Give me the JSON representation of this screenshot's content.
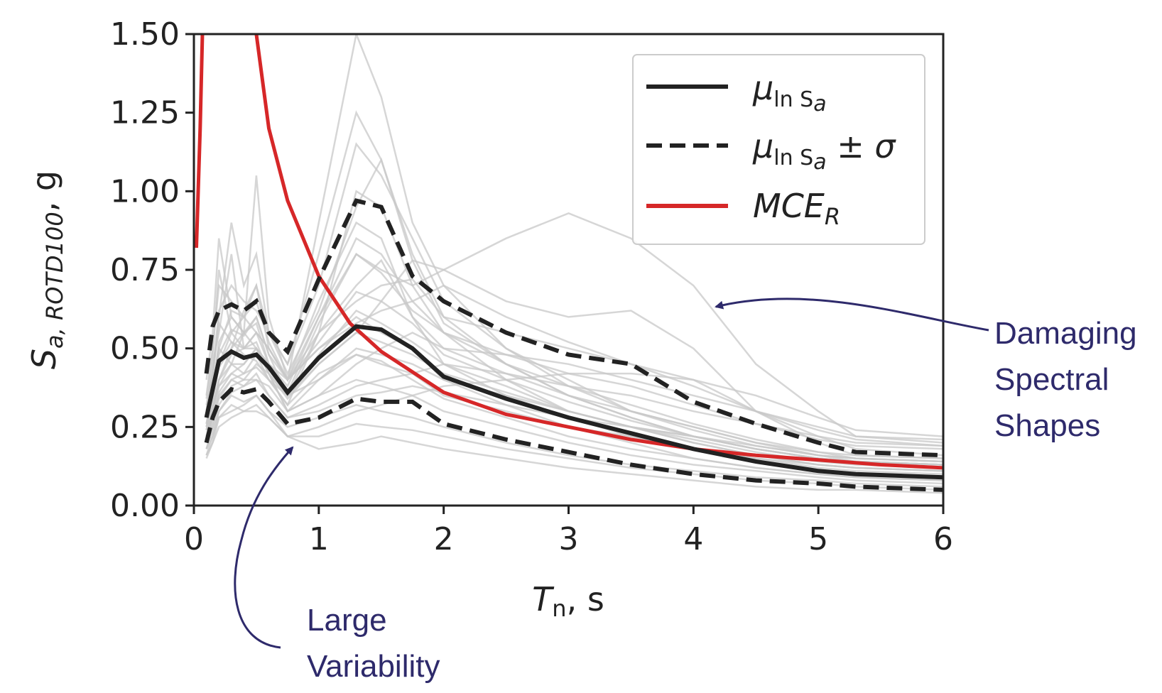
{
  "chart_data": {
    "type": "line",
    "xlabel": {
      "main": "T",
      "sub": "n",
      "rest": ", s"
    },
    "ylabel": {
      "main": "S",
      "sub": "a, ROTD100",
      "rest": ", g"
    },
    "xlim": [
      0,
      6
    ],
    "ylim": [
      0,
      1.5
    ],
    "xticks": [
      0,
      1,
      2,
      3,
      4,
      5,
      6
    ],
    "xtick_labels": [
      "0",
      "1",
      "2",
      "3",
      "4",
      "5",
      "6"
    ],
    "yticks": [
      0,
      0.25,
      0.5,
      0.75,
      1.0,
      1.25,
      1.5
    ],
    "ytick_labels": [
      "0.00",
      "0.25",
      "0.50",
      "0.75",
      "1.00",
      "1.25",
      "1.50"
    ],
    "grid": false,
    "legend": {
      "position": "top-right",
      "entries": [
        {
          "label": "μ",
          "sub": "ln S",
          "subsub": "a",
          "suffix": "",
          "style": "solid",
          "color": "#222222"
        },
        {
          "label": "μ",
          "sub": "ln S",
          "subsub": "a",
          "suffix": " ± σ",
          "style": "dashed",
          "color": "#222222"
        },
        {
          "label": "MCE",
          "sub": "R",
          "subsub": "",
          "suffix": "",
          "style": "solid",
          "color": "#d62728"
        }
      ]
    },
    "annotations": [
      {
        "text_lines": [
          "Damaging",
          "Spectral",
          "Shapes"
        ],
        "color": "#2e2a6b"
      },
      {
        "text_lines": [
          "Large",
          "Variability"
        ],
        "color": "#2e2a6b"
      }
    ],
    "x": [
      0.1,
      0.15,
      0.2,
      0.3,
      0.4,
      0.5,
      0.6,
      0.75,
      1.0,
      1.3,
      1.5,
      1.75,
      2.0,
      2.5,
      3.0,
      3.5,
      4.0,
      4.5,
      5.0,
      5.3,
      6.0
    ],
    "series": [
      {
        "name": "μ_lnSa",
        "role": "mean",
        "color": "#222222",
        "style": "solid",
        "values": [
          0.28,
          0.37,
          0.46,
          0.49,
          0.47,
          0.48,
          0.44,
          0.36,
          0.47,
          0.57,
          0.56,
          0.5,
          0.41,
          0.34,
          0.28,
          0.23,
          0.18,
          0.14,
          0.11,
          0.1,
          0.09
        ]
      },
      {
        "name": "μ_lnSa + σ",
        "role": "mean_plus",
        "color": "#222222",
        "style": "dashed",
        "values": [
          0.42,
          0.57,
          0.62,
          0.64,
          0.62,
          0.65,
          0.55,
          0.49,
          0.72,
          0.97,
          0.95,
          0.73,
          0.65,
          0.55,
          0.48,
          0.45,
          0.33,
          0.26,
          0.2,
          0.17,
          0.16
        ]
      },
      {
        "name": "μ_lnSa − σ",
        "role": "mean_minus",
        "color": "#222222",
        "style": "dashed",
        "values": [
          0.2,
          0.28,
          0.33,
          0.37,
          0.36,
          0.37,
          0.33,
          0.26,
          0.28,
          0.34,
          0.33,
          0.33,
          0.26,
          0.21,
          0.17,
          0.13,
          0.1,
          0.08,
          0.07,
          0.06,
          0.05
        ]
      }
    ],
    "mce_r": {
      "color": "#d62728",
      "x": [
        0.02,
        0.05,
        0.08,
        0.1,
        0.5,
        0.6,
        0.75,
        1.0,
        1.25,
        1.5,
        2.0,
        2.5,
        3.0,
        3.5,
        4.0,
        4.5,
        5.0,
        5.5,
        6.0
      ],
      "values": [
        0.82,
        1.2,
        1.7,
        2.2,
        1.5,
        1.2,
        0.97,
        0.73,
        0.58,
        0.49,
        0.36,
        0.29,
        0.25,
        0.21,
        0.18,
        0.16,
        0.145,
        0.13,
        0.12
      ]
    },
    "records": [
      {
        "values": [
          0.3,
          0.4,
          0.6,
          0.9,
          0.7,
          0.8,
          0.55,
          0.45,
          0.8,
          1.25,
          1.1,
          0.8,
          0.6,
          0.45,
          0.35,
          0.28,
          0.22,
          0.18,
          0.15,
          0.14,
          0.13
        ]
      },
      {
        "values": [
          0.25,
          0.35,
          0.45,
          0.55,
          0.6,
          0.7,
          0.5,
          0.4,
          0.9,
          1.5,
          1.3,
          0.9,
          0.7,
          0.5,
          0.4,
          0.3,
          0.25,
          0.2,
          0.17,
          0.15,
          0.14
        ]
      },
      {
        "values": [
          0.2,
          0.3,
          0.4,
          0.45,
          0.42,
          0.44,
          0.4,
          0.35,
          0.45,
          0.55,
          0.65,
          0.78,
          0.75,
          0.85,
          0.93,
          0.85,
          0.7,
          0.45,
          0.3,
          0.22,
          0.2
        ]
      },
      {
        "values": [
          0.35,
          0.5,
          0.7,
          0.65,
          0.6,
          0.55,
          0.5,
          0.4,
          0.6,
          0.8,
          0.75,
          0.7,
          0.75,
          0.65,
          0.6,
          0.62,
          0.5,
          0.3,
          0.2,
          0.16,
          0.15
        ]
      },
      {
        "values": [
          0.18,
          0.25,
          0.32,
          0.38,
          0.4,
          0.45,
          0.42,
          0.3,
          0.35,
          0.45,
          0.5,
          0.55,
          0.5,
          0.48,
          0.45,
          0.4,
          0.35,
          0.3,
          0.25,
          0.22,
          0.21
        ]
      },
      {
        "values": [
          0.4,
          0.55,
          0.85,
          0.6,
          0.55,
          0.5,
          0.45,
          0.35,
          0.55,
          1.0,
          0.95,
          0.7,
          0.55,
          0.4,
          0.3,
          0.25,
          0.2,
          0.16,
          0.13,
          0.12,
          0.11
        ]
      },
      {
        "values": [
          0.22,
          0.3,
          0.4,
          0.5,
          0.55,
          1.05,
          0.6,
          0.4,
          0.5,
          0.6,
          0.55,
          0.5,
          0.4,
          0.32,
          0.25,
          0.2,
          0.15,
          0.12,
          0.1,
          0.09,
          0.08
        ]
      },
      {
        "values": [
          0.15,
          0.2,
          0.28,
          0.3,
          0.32,
          0.35,
          0.3,
          0.22,
          0.25,
          0.3,
          0.32,
          0.35,
          0.38,
          0.4,
          0.42,
          0.42,
          0.4,
          0.3,
          0.22,
          0.18,
          0.16
        ]
      },
      {
        "values": [
          0.3,
          0.45,
          0.55,
          0.8,
          0.5,
          0.5,
          0.45,
          0.4,
          0.65,
          0.9,
          0.85,
          0.6,
          0.45,
          0.35,
          0.28,
          0.22,
          0.18,
          0.15,
          0.12,
          0.11,
          0.1
        ]
      },
      {
        "values": [
          0.25,
          0.32,
          0.38,
          0.42,
          0.4,
          0.4,
          0.38,
          0.3,
          0.4,
          0.5,
          0.48,
          0.45,
          0.4,
          0.35,
          0.3,
          0.25,
          0.22,
          0.18,
          0.15,
          0.14,
          0.13
        ]
      },
      {
        "values": [
          0.2,
          0.28,
          0.35,
          0.4,
          0.42,
          0.48,
          0.4,
          0.32,
          0.55,
          0.7,
          0.78,
          0.6,
          0.5,
          0.42,
          0.35,
          0.3,
          0.25,
          0.2,
          0.16,
          0.15,
          0.14
        ]
      },
      {
        "values": [
          0.28,
          0.35,
          0.5,
          0.45,
          0.45,
          0.5,
          0.42,
          0.3,
          0.35,
          0.4,
          0.38,
          0.35,
          0.3,
          0.25,
          0.2,
          0.16,
          0.13,
          0.11,
          0.09,
          0.08,
          0.07
        ]
      },
      {
        "values": [
          0.18,
          0.24,
          0.3,
          0.35,
          0.33,
          0.35,
          0.3,
          0.25,
          0.28,
          0.32,
          0.3,
          0.28,
          0.25,
          0.2,
          0.16,
          0.13,
          0.11,
          0.09,
          0.08,
          0.07,
          0.06
        ]
      },
      {
        "values": [
          0.32,
          0.42,
          0.62,
          0.7,
          0.65,
          0.62,
          0.55,
          0.45,
          0.7,
          1.15,
          1.05,
          0.85,
          0.65,
          0.5,
          0.38,
          0.3,
          0.24,
          0.19,
          0.16,
          0.14,
          0.13
        ]
      },
      {
        "values": [
          0.16,
          0.2,
          0.25,
          0.28,
          0.3,
          0.3,
          0.28,
          0.22,
          0.18,
          0.2,
          0.22,
          0.2,
          0.18,
          0.15,
          0.12,
          0.1,
          0.08,
          0.06,
          0.05,
          0.05,
          0.04
        ]
      },
      {
        "values": [
          0.24,
          0.32,
          0.45,
          0.52,
          0.5,
          0.55,
          0.5,
          0.4,
          0.55,
          0.65,
          0.7,
          0.72,
          0.6,
          0.55,
          0.5,
          0.45,
          0.4,
          0.35,
          0.28,
          0.24,
          0.22
        ]
      },
      {
        "values": [
          0.22,
          0.3,
          0.38,
          0.45,
          0.55,
          0.6,
          0.48,
          0.35,
          0.4,
          0.48,
          0.45,
          0.42,
          0.35,
          0.3,
          0.25,
          0.22,
          0.18,
          0.15,
          0.13,
          0.12,
          0.11
        ]
      },
      {
        "values": [
          0.26,
          0.36,
          0.52,
          0.6,
          0.55,
          0.58,
          0.45,
          0.38,
          0.6,
          0.85,
          0.8,
          0.65,
          0.55,
          0.45,
          0.38,
          0.32,
          0.26,
          0.21,
          0.17,
          0.16,
          0.15
        ]
      },
      {
        "values": [
          0.2,
          0.26,
          0.34,
          0.4,
          0.38,
          0.42,
          0.35,
          0.28,
          0.32,
          0.38,
          0.4,
          0.42,
          0.45,
          0.42,
          0.38,
          0.35,
          0.3,
          0.26,
          0.22,
          0.2,
          0.19
        ]
      },
      {
        "values": [
          0.34,
          0.48,
          0.75,
          0.55,
          0.5,
          0.52,
          0.42,
          0.35,
          0.48,
          0.62,
          0.58,
          0.52,
          0.45,
          0.38,
          0.3,
          0.25,
          0.2,
          0.16,
          0.13,
          0.12,
          0.11
        ]
      },
      {
        "values": [
          0.18,
          0.22,
          0.28,
          0.32,
          0.3,
          0.32,
          0.28,
          0.22,
          0.22,
          0.26,
          0.25,
          0.24,
          0.22,
          0.18,
          0.15,
          0.12,
          0.1,
          0.08,
          0.07,
          0.06,
          0.05
        ]
      },
      {
        "values": [
          0.24,
          0.34,
          0.44,
          0.5,
          0.62,
          0.7,
          0.55,
          0.42,
          0.62,
          0.95,
          1.1,
          0.78,
          0.58,
          0.45,
          0.35,
          0.28,
          0.22,
          0.18,
          0.15,
          0.14,
          0.13
        ]
      },
      {
        "values": [
          0.28,
          0.38,
          0.5,
          0.62,
          0.6,
          0.65,
          0.52,
          0.4,
          0.5,
          0.58,
          0.62,
          0.65,
          0.7,
          0.6,
          0.52,
          0.45,
          0.38,
          0.3,
          0.24,
          0.21,
          0.19
        ]
      },
      {
        "values": [
          0.2,
          0.28,
          0.36,
          0.42,
          0.45,
          0.5,
          0.42,
          0.34,
          0.45,
          0.55,
          0.52,
          0.48,
          0.42,
          0.36,
          0.3,
          0.25,
          0.21,
          0.17,
          0.14,
          0.13,
          0.12
        ]
      },
      {
        "values": [
          0.3,
          0.42,
          0.58,
          0.52,
          0.48,
          0.46,
          0.4,
          0.32,
          0.42,
          0.48,
          0.46,
          0.4,
          0.34,
          0.28,
          0.22,
          0.18,
          0.15,
          0.12,
          0.1,
          0.09,
          0.08
        ]
      },
      {
        "values": [
          0.22,
          0.3,
          0.4,
          0.48,
          0.5,
          0.55,
          0.45,
          0.36,
          0.58,
          0.8,
          0.74,
          0.62,
          0.55,
          0.48,
          0.42,
          0.38,
          0.32,
          0.26,
          0.21,
          0.19,
          0.18
        ]
      },
      {
        "values": [
          0.16,
          0.22,
          0.3,
          0.36,
          0.38,
          0.4,
          0.35,
          0.28,
          0.3,
          0.35,
          0.36,
          0.38,
          0.36,
          0.32,
          0.28,
          0.25,
          0.22,
          0.19,
          0.16,
          0.15,
          0.14
        ]
      },
      {
        "values": [
          0.26,
          0.36,
          0.48,
          0.56,
          0.54,
          0.6,
          0.48,
          0.4,
          0.52,
          0.68,
          0.65,
          0.58,
          0.48,
          0.4,
          0.33,
          0.27,
          0.22,
          0.18,
          0.15,
          0.14,
          0.13
        ]
      }
    ]
  }
}
